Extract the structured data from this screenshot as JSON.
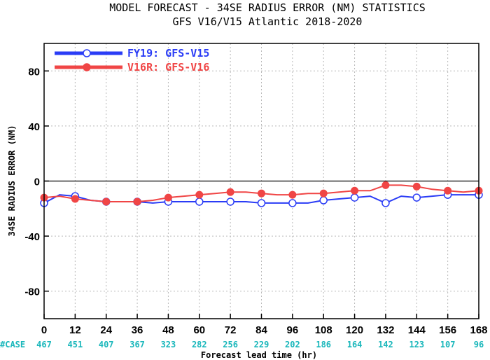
{
  "chart_data": {
    "type": "line",
    "title": "MODEL FORECAST - 34SE RADIUS ERROR (NM) STATISTICS",
    "subtitle": "GFS V16/V15 Atlantic 2018-2020",
    "xlabel": "Forecast lead time (hr)",
    "ylabel": "34SE RADIUS ERROR (NM)",
    "xlim": [
      0,
      168
    ],
    "ylim": [
      -100,
      100
    ],
    "x_ticks": [
      0,
      12,
      24,
      36,
      48,
      60,
      72,
      84,
      96,
      108,
      120,
      132,
      144,
      156,
      168
    ],
    "y_ticks": [
      -80,
      -40,
      0,
      40,
      80
    ],
    "grid": true,
    "legend_position": "top-left",
    "series": [
      {
        "name": "FY19: GFS-V15",
        "color": "#2a3cf6",
        "x": [
          0,
          6,
          12,
          18,
          24,
          30,
          36,
          42,
          48,
          54,
          60,
          66,
          72,
          78,
          84,
          90,
          96,
          102,
          108,
          114,
          120,
          126,
          132,
          138,
          144,
          150,
          156,
          162,
          168
        ],
        "values": [
          -16,
          -10,
          -11,
          -14,
          -15,
          -15,
          -15,
          -16,
          -15,
          -15,
          -15,
          -15,
          -15,
          -15,
          -16,
          -16,
          -16,
          -16,
          -14,
          -13,
          -12,
          -11,
          -16,
          -11,
          -12,
          -11,
          -10,
          -10,
          -10
        ],
        "markers": [
          0,
          12,
          24,
          36,
          48,
          60,
          72,
          84,
          96,
          108,
          120,
          132,
          144,
          156,
          168
        ]
      },
      {
        "name": "V16R: GFS-V16",
        "color": "#f04545",
        "x": [
          0,
          6,
          12,
          18,
          24,
          30,
          36,
          42,
          48,
          54,
          60,
          66,
          72,
          78,
          84,
          90,
          96,
          102,
          108,
          114,
          120,
          126,
          132,
          138,
          144,
          150,
          156,
          162,
          168
        ],
        "values": [
          -12,
          -11,
          -13,
          -14,
          -15,
          -15,
          -15,
          -14,
          -12,
          -11,
          -10,
          -9,
          -8,
          -8,
          -9,
          -10,
          -10,
          -9,
          -9,
          -8,
          -7,
          -7,
          -3,
          -3,
          -4,
          -6,
          -7,
          -8,
          -7
        ],
        "markers": [
          0,
          12,
          24,
          36,
          48,
          60,
          72,
          84,
          96,
          108,
          120,
          132,
          144,
          156,
          168
        ]
      }
    ],
    "case_label": "#CASE",
    "case_color": "#1ab7bb",
    "case_counts": [
      467,
      451,
      407,
      367,
      323,
      282,
      256,
      229,
      202,
      186,
      164,
      142,
      123,
      107,
      96
    ]
  }
}
